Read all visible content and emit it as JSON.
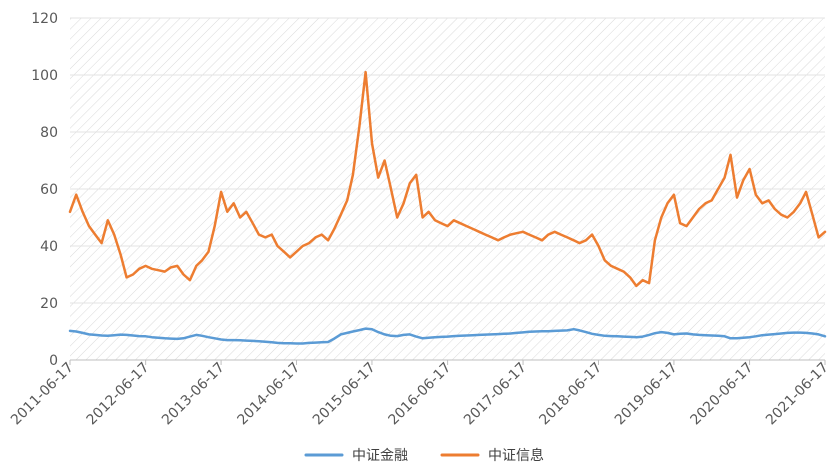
{
  "chart_data": {
    "type": "line",
    "title": "",
    "xlabel": "",
    "ylabel": "",
    "ylim": [
      0,
      120
    ],
    "yticks": [
      0,
      20,
      40,
      60,
      80,
      100,
      120
    ],
    "grid": "diagonal-hatched plot area, horizontal gridlines",
    "legend": "bottom-center",
    "x_ticks": [
      "2011-06-17",
      "2012-06-17",
      "2013-06-17",
      "2014-06-17",
      "2015-06-17",
      "2016-06-17",
      "2017-06-17",
      "2018-06-17",
      "2019-06-17",
      "2020-06-17",
      "2021-06-17"
    ],
    "x": [
      "2011-06-17",
      "2011-07-17",
      "2011-08-17",
      "2011-09-17",
      "2011-10-17",
      "2011-11-17",
      "2011-12-17",
      "2012-01-17",
      "2012-02-17",
      "2012-03-17",
      "2012-04-17",
      "2012-05-17",
      "2012-06-17",
      "2012-07-17",
      "2012-08-17",
      "2012-09-17",
      "2012-10-17",
      "2012-11-17",
      "2012-12-17",
      "2013-01-17",
      "2013-02-17",
      "2013-03-17",
      "2013-04-17",
      "2013-05-17",
      "2013-06-17",
      "2013-07-17",
      "2013-08-17",
      "2013-09-17",
      "2013-10-17",
      "2013-11-17",
      "2013-12-17",
      "2014-01-17",
      "2014-02-17",
      "2014-03-17",
      "2014-04-17",
      "2014-05-17",
      "2014-06-17",
      "2014-07-17",
      "2014-08-17",
      "2014-09-17",
      "2014-10-17",
      "2014-11-17",
      "2014-12-17",
      "2015-01-17",
      "2015-02-17",
      "2015-03-17",
      "2015-04-17",
      "2015-05-17",
      "2015-06-17",
      "2015-07-17",
      "2015-08-17",
      "2015-09-17",
      "2015-10-17",
      "2015-11-17",
      "2015-12-17",
      "2016-01-17",
      "2016-02-17",
      "2016-03-17",
      "2016-04-17",
      "2016-05-17",
      "2016-06-17",
      "2016-07-17",
      "2016-08-17",
      "2016-09-17",
      "2016-10-17",
      "2016-11-17",
      "2016-12-17",
      "2017-01-17",
      "2017-02-17",
      "2017-03-17",
      "2017-04-17",
      "2017-05-17",
      "2017-06-17",
      "2017-07-17",
      "2017-08-17",
      "2017-09-17",
      "2017-10-17",
      "2017-11-17",
      "2017-12-17",
      "2018-01-17",
      "2018-02-17",
      "2018-03-17",
      "2018-04-17",
      "2018-05-17",
      "2018-06-17",
      "2018-07-17",
      "2018-08-17",
      "2018-09-17",
      "2018-10-17",
      "2018-11-17",
      "2018-12-17",
      "2019-01-17",
      "2019-02-17",
      "2019-03-17",
      "2019-04-17",
      "2019-05-17",
      "2019-06-17",
      "2019-07-17",
      "2019-08-17",
      "2019-09-17",
      "2019-10-17",
      "2019-11-17",
      "2019-12-17",
      "2020-01-17",
      "2020-02-17",
      "2020-03-17",
      "2020-04-17",
      "2020-05-17",
      "2020-06-17",
      "2020-07-17",
      "2020-08-17",
      "2020-09-17",
      "2020-10-17",
      "2020-11-17",
      "2020-12-17",
      "2021-01-17",
      "2021-02-17",
      "2021-03-17",
      "2021-04-17",
      "2021-05-17",
      "2021-06-17"
    ],
    "series": [
      {
        "name": "中证金融",
        "color": "#5B9BD5",
        "values": [
          10.2,
          10.0,
          9.5,
          9.0,
          8.8,
          8.6,
          8.5,
          8.7,
          8.9,
          8.8,
          8.6,
          8.4,
          8.3,
          8.0,
          7.8,
          7.6,
          7.5,
          7.4,
          7.6,
          8.2,
          8.8,
          8.5,
          8.0,
          7.6,
          7.2,
          7.0,
          7.0,
          6.9,
          6.8,
          6.7,
          6.6,
          6.4,
          6.2,
          6.0,
          5.9,
          5.9,
          5.8,
          5.8,
          6.0,
          6.1,
          6.2,
          6.3,
          7.5,
          9.0,
          9.5,
          10.0,
          10.5,
          11.0,
          10.8,
          9.8,
          9.0,
          8.5,
          8.4,
          8.8,
          9.0,
          8.2,
          7.6,
          7.8,
          8.0,
          8.1,
          8.2,
          8.4,
          8.5,
          8.6,
          8.7,
          8.8,
          8.9,
          9.0,
          9.1,
          9.2,
          9.3,
          9.5,
          9.7,
          9.9,
          10.0,
          10.1,
          10.1,
          10.2,
          10.3,
          10.4,
          10.8,
          10.4,
          9.8,
          9.2,
          8.8,
          8.5,
          8.4,
          8.3,
          8.2,
          8.1,
          8.0,
          8.2,
          8.8,
          9.4,
          9.8,
          9.5,
          9.0,
          9.2,
          9.3,
          9.0,
          8.8,
          8.7,
          8.6,
          8.5,
          8.3,
          7.6,
          7.6,
          7.8,
          8.0,
          8.3,
          8.7,
          8.9,
          9.1,
          9.3,
          9.5,
          9.6,
          9.6,
          9.5,
          9.3,
          9.0,
          8.3
        ]
      },
      {
        "name": "中证信息",
        "color": "#ED7D31",
        "values": [
          52.0,
          58.0,
          52.0,
          47.0,
          44.0,
          41.0,
          49.0,
          44.0,
          37.0,
          29.0,
          30.0,
          32.0,
          33.0,
          32.0,
          31.5,
          31.0,
          32.5,
          33.0,
          30.0,
          28.0,
          33.0,
          35.0,
          38.0,
          47.0,
          59.0,
          52.0,
          55.0,
          50.0,
          52.0,
          48.0,
          44.0,
          43.0,
          44.0,
          40.0,
          38.0,
          36.0,
          38.0,
          40.0,
          41.0,
          43.0,
          44.0,
          42.0,
          46.0,
          51.0,
          56.0,
          65.0,
          82.0,
          101.0,
          76.0,
          64.0,
          70.0,
          60.0,
          50.0,
          55.0,
          62.0,
          65.0,
          50.0,
          52.0,
          49.0,
          48.0,
          47.0,
          49.0,
          48.0,
          47.0,
          46.0,
          45.0,
          44.0,
          43.0,
          42.0,
          43.0,
          44.0,
          44.5,
          45.0,
          44.0,
          43.0,
          42.0,
          44.0,
          45.0,
          44.0,
          43.0,
          42.0,
          41.0,
          42.0,
          44.0,
          40.0,
          35.0,
          33.0,
          32.0,
          31.0,
          29.0,
          26.0,
          28.0,
          27.0,
          42.0,
          50.0,
          55.0,
          58.0,
          48.0,
          47.0,
          50.0,
          53.0,
          55.0,
          56.0,
          60.0,
          64.0,
          72.0,
          57.0,
          63.0,
          67.0,
          58.0,
          55.0,
          56.0,
          53.0,
          51.0,
          50.0,
          52.0,
          55.0,
          59.0,
          51.0,
          43.0,
          45.0
        ]
      }
    ]
  }
}
